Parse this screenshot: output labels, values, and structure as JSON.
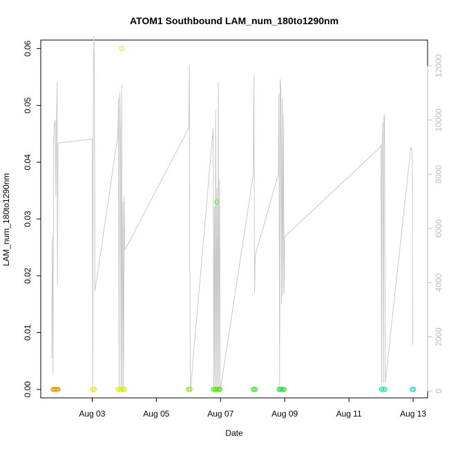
{
  "chart_data": {
    "type": "scatter",
    "title": "ATOM1 Southbound LAM_num_180to1290nm",
    "xlabel": "Date",
    "ylabel": "LAM_num_180to1290nm",
    "x_ticks": [
      "Aug 03",
      "Aug 05",
      "Aug 07",
      "Aug 09",
      "Aug 11",
      "Aug 13"
    ],
    "x_tick_values": [
      3,
      5,
      7,
      9,
      11,
      13
    ],
    "xlim": [
      1.4,
      13.45
    ],
    "ylim": [
      -0.0015,
      0.0615
    ],
    "y_ticks": [
      0.0,
      0.01,
      0.02,
      0.03,
      0.04,
      0.05,
      0.06
    ],
    "y_tick_labels": [
      "0.00",
      "0.01",
      "0.02",
      "0.03",
      "0.04",
      "0.05",
      "0.06"
    ],
    "y2lim": [
      -250,
      12950
    ],
    "y2_ticks": [
      0,
      2000,
      4000,
      6000,
      8000,
      10000,
      12000
    ],
    "y2_tick_labels": [
      "0",
      "2000",
      "4000",
      "6000",
      "8000",
      "10000",
      "12000"
    ],
    "y2_color": "#bdbdbd",
    "grid": false,
    "points_series": {
      "name": "",
      "marker": "open-circle",
      "points": [
        {
          "x": 1.79,
          "y": 0.0,
          "color": "#f08c00"
        },
        {
          "x": 1.83,
          "y": 0.0,
          "color": "#f09400"
        },
        {
          "x": 1.87,
          "y": 0.0,
          "color": "#f09a00"
        },
        {
          "x": 1.91,
          "y": 0.0,
          "color": "#f0a000"
        },
        {
          "x": 1.94,
          "y": 0.0,
          "color": "#f0a600"
        },
        {
          "x": 3.02,
          "y": 0.0,
          "color": "#e8e800"
        },
        {
          "x": 3.07,
          "y": 0.0,
          "color": "#e8e800"
        },
        {
          "x": 3.81,
          "y": 0.0,
          "color": "#e0f000"
        },
        {
          "x": 3.86,
          "y": 0.0,
          "color": "#e0f000"
        },
        {
          "x": 3.91,
          "y": 0.0,
          "color": "#e0f000"
        },
        {
          "x": 3.96,
          "y": 0.0,
          "color": "#d8f000"
        },
        {
          "x": 4.01,
          "y": 0.0,
          "color": "#d8f000"
        },
        {
          "x": 3.92,
          "y": 0.06,
          "color": "#e8f000"
        },
        {
          "x": 6.01,
          "y": 0.0,
          "color": "#80f000"
        },
        {
          "x": 6.05,
          "y": 0.0,
          "color": "#80f000"
        },
        {
          "x": 6.78,
          "y": 0.0,
          "color": "#50f000"
        },
        {
          "x": 6.83,
          "y": 0.0,
          "color": "#50f000"
        },
        {
          "x": 6.88,
          "y": 0.0,
          "color": "#48f000"
        },
        {
          "x": 6.93,
          "y": 0.0,
          "color": "#48f000"
        },
        {
          "x": 6.98,
          "y": 0.0,
          "color": "#40f000"
        },
        {
          "x": 6.88,
          "y": 0.033,
          "color": "#70f040"
        },
        {
          "x": 8.03,
          "y": 0.0,
          "color": "#20f000"
        },
        {
          "x": 8.08,
          "y": 0.0,
          "color": "#20f000"
        },
        {
          "x": 8.83,
          "y": 0.0,
          "color": "#10f020"
        },
        {
          "x": 8.88,
          "y": 0.0,
          "color": "#10f020"
        },
        {
          "x": 8.93,
          "y": 0.0,
          "color": "#10f030"
        },
        {
          "x": 8.98,
          "y": 0.0,
          "color": "#10f030"
        },
        {
          "x": 12.02,
          "y": 0.0,
          "color": "#10f0b0"
        },
        {
          "x": 12.07,
          "y": 0.0,
          "color": "#10f0b8"
        },
        {
          "x": 12.12,
          "y": 0.0,
          "color": "#10f0c0"
        },
        {
          "x": 12.97,
          "y": 0.0,
          "color": "#10e8e0"
        },
        {
          "x": 13.01,
          "y": 0.0,
          "color": "#10e0e8"
        }
      ]
    },
    "line_series": {
      "name": "",
      "axis": "right",
      "color": "#c8c8c8",
      "points": [
        [
          1.74,
          1200
        ],
        [
          1.76,
          5700
        ],
        [
          1.78,
          600
        ],
        [
          1.8,
          9200
        ],
        [
          1.83,
          9900
        ],
        [
          1.85,
          10000
        ],
        [
          1.87,
          7200
        ],
        [
          1.89,
          9900
        ],
        [
          1.91,
          11400
        ],
        [
          1.92,
          3900
        ],
        [
          1.94,
          9100
        ],
        [
          1.96,
          9150
        ],
        [
          3.0,
          9300
        ],
        [
          3.02,
          0
        ],
        [
          3.04,
          12100
        ],
        [
          3.06,
          13100
        ],
        [
          3.07,
          11800
        ],
        [
          3.09,
          3700
        ],
        [
          3.8,
          9400
        ],
        [
          3.82,
          10800
        ],
        [
          3.84,
          0
        ],
        [
          3.86,
          11000
        ],
        [
          3.88,
          9600
        ],
        [
          3.9,
          0
        ],
        [
          3.92,
          11300
        ],
        [
          3.94,
          0
        ],
        [
          3.96,
          7000
        ],
        [
          3.98,
          0
        ],
        [
          4.0,
          7200
        ],
        [
          4.02,
          5200
        ],
        [
          6.01,
          9700
        ],
        [
          6.03,
          12000
        ],
        [
          6.04,
          5800
        ],
        [
          6.06,
          0
        ],
        [
          6.77,
          9700
        ],
        [
          6.79,
          0
        ],
        [
          6.81,
          6800
        ],
        [
          6.83,
          0
        ],
        [
          6.85,
          10400
        ],
        [
          6.87,
          0
        ],
        [
          6.89,
          7500
        ],
        [
          6.91,
          0
        ],
        [
          6.93,
          11400
        ],
        [
          6.95,
          0
        ],
        [
          6.97,
          7800
        ],
        [
          6.99,
          0
        ],
        [
          8.02,
          8000
        ],
        [
          8.04,
          11700
        ],
        [
          8.06,
          3600
        ],
        [
          8.08,
          5000
        ],
        [
          8.8,
          8000
        ],
        [
          8.82,
          11000
        ],
        [
          8.84,
          0
        ],
        [
          8.86,
          11500
        ],
        [
          8.88,
          11200
        ],
        [
          8.9,
          3200
        ],
        [
          8.92,
          10800
        ],
        [
          8.94,
          3500
        ],
        [
          8.96,
          10200
        ],
        [
          8.98,
          3600
        ],
        [
          9.0,
          5700
        ],
        [
          11.98,
          9000
        ],
        [
          12.0,
          9100
        ],
        [
          12.01,
          0
        ],
        [
          12.03,
          8700
        ],
        [
          12.05,
          9900
        ],
        [
          12.07,
          300
        ],
        [
          12.09,
          10100
        ],
        [
          12.11,
          10200
        ],
        [
          12.13,
          300
        ],
        [
          12.93,
          9000
        ],
        [
          12.95,
          8900
        ],
        [
          12.97,
          8800
        ],
        [
          12.99,
          1700
        ]
      ]
    }
  }
}
